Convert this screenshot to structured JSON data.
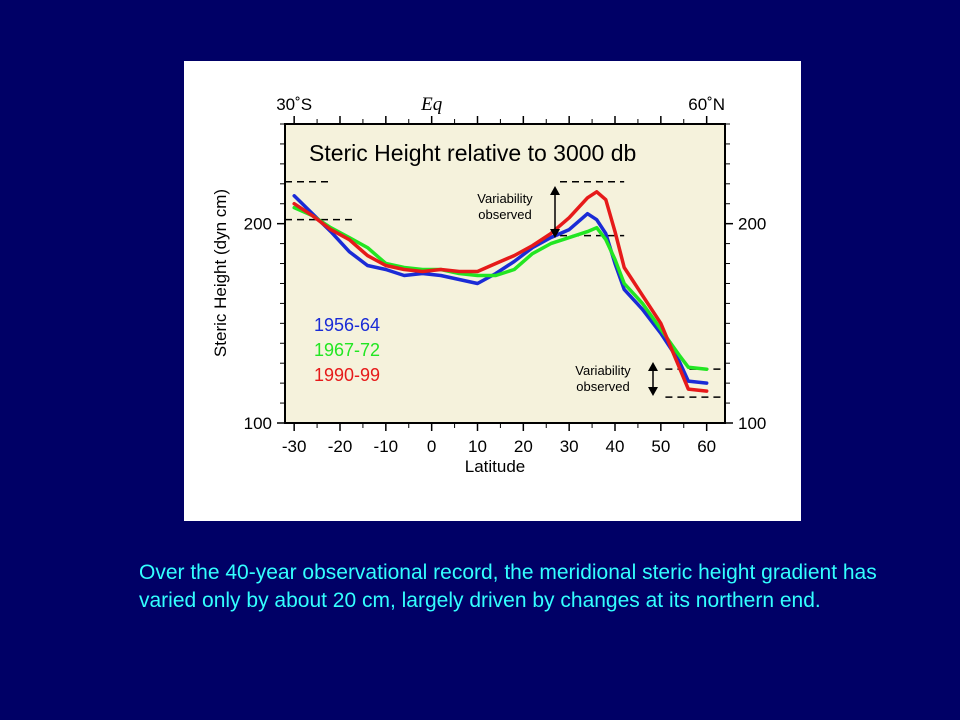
{
  "caption": "Over the 40-year observational record, the meridional steric height gradient has varied only by about 20 cm, largely driven by changes at its northern end.",
  "colors": {
    "background": "#000066",
    "caption": "#33ffff",
    "plot_background": "#f5f2dc",
    "series_1956": "#1a2bd6",
    "series_1967": "#22e622",
    "series_1990": "#e61a1a"
  },
  "chart_data": {
    "type": "line",
    "title": "Steric Height relative to 3000 db",
    "xlabel": "Latitude",
    "ylabel": "Steric Height (dyn cm)",
    "xlim": [
      -32,
      64
    ],
    "ylim": [
      100,
      250
    ],
    "x_ticks": [
      -30,
      -20,
      -10,
      0,
      10,
      20,
      30,
      40,
      50,
      60
    ],
    "x_tick_labels": [
      "-30",
      "-20",
      "-10",
      "0",
      "10",
      "20",
      "30",
      "40",
      "50",
      "60"
    ],
    "y_ticks": [
      100,
      200
    ],
    "y_tick_labels": [
      "100",
      "200"
    ],
    "top_labels": [
      {
        "text": "30˚S",
        "x": -30
      },
      {
        "text": "Eq",
        "x": 0
      },
      {
        "text": "60˚N",
        "x": 60
      }
    ],
    "grid": false,
    "legend_position": "lower-left",
    "annotations": [
      {
        "text_lines": [
          "Variability",
          "observed"
        ],
        "x": 22,
        "y": 206
      },
      {
        "text_lines": [
          "Variability",
          "observed"
        ],
        "x": 45,
        "y": 117
      }
    ],
    "series": [
      {
        "name": "1956-64",
        "color": "#1a2bd6",
        "points": [
          [
            -30,
            214
          ],
          [
            -26,
            205
          ],
          [
            -22,
            196
          ],
          [
            -18,
            186
          ],
          [
            -14,
            179
          ],
          [
            -10,
            177
          ],
          [
            -6,
            174
          ],
          [
            -2,
            175
          ],
          [
            2,
            174
          ],
          [
            6,
            172
          ],
          [
            10,
            170
          ],
          [
            14,
            175
          ],
          [
            18,
            181
          ],
          [
            22,
            188
          ],
          [
            26,
            193
          ],
          [
            30,
            197
          ],
          [
            34,
            205
          ],
          [
            36,
            202
          ],
          [
            38,
            195
          ],
          [
            40,
            180
          ],
          [
            42,
            167
          ],
          [
            46,
            157
          ],
          [
            50,
            145
          ],
          [
            54,
            131
          ],
          [
            56,
            121
          ],
          [
            60,
            120
          ]
        ]
      },
      {
        "name": "1967-72",
        "color": "#22e622",
        "points": [
          [
            -30,
            208
          ],
          [
            -26,
            204
          ],
          [
            -22,
            198
          ],
          [
            -18,
            193
          ],
          [
            -14,
            188
          ],
          [
            -10,
            180
          ],
          [
            -6,
            178
          ],
          [
            -2,
            177
          ],
          [
            2,
            177
          ],
          [
            6,
            175
          ],
          [
            10,
            174
          ],
          [
            14,
            174
          ],
          [
            18,
            177
          ],
          [
            22,
            185
          ],
          [
            26,
            190
          ],
          [
            30,
            193
          ],
          [
            34,
            196
          ],
          [
            36,
            198
          ],
          [
            38,
            192
          ],
          [
            40,
            182
          ],
          [
            42,
            170
          ],
          [
            46,
            160
          ],
          [
            50,
            147
          ],
          [
            54,
            134
          ],
          [
            56,
            128
          ],
          [
            60,
            127
          ]
        ]
      },
      {
        "name": "1990-99",
        "color": "#e61a1a",
        "points": [
          [
            -30,
            210
          ],
          [
            -26,
            204
          ],
          [
            -22,
            197
          ],
          [
            -18,
            192
          ],
          [
            -14,
            184
          ],
          [
            -10,
            179
          ],
          [
            -6,
            177
          ],
          [
            -2,
            176
          ],
          [
            2,
            177
          ],
          [
            6,
            176
          ],
          [
            10,
            176
          ],
          [
            14,
            180
          ],
          [
            18,
            184
          ],
          [
            22,
            189
          ],
          [
            26,
            195
          ],
          [
            30,
            203
          ],
          [
            34,
            213
          ],
          [
            36,
            216
          ],
          [
            38,
            212
          ],
          [
            40,
            196
          ],
          [
            42,
            178
          ],
          [
            46,
            164
          ],
          [
            50,
            150
          ],
          [
            54,
            128
          ],
          [
            56,
            117
          ],
          [
            60,
            116
          ]
        ]
      }
    ]
  }
}
